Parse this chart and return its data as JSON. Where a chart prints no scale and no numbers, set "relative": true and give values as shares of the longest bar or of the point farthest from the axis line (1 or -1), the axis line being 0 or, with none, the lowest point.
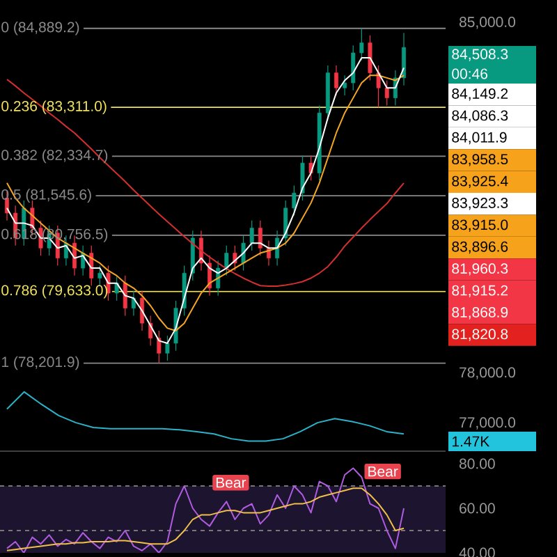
{
  "chart_data": [
    {
      "type": "candlestick",
      "categories": [
        null,
        null,
        null,
        null,
        null,
        null,
        null,
        null,
        null,
        null,
        null,
        null,
        null,
        null,
        null,
        null,
        null,
        null,
        null,
        null,
        null,
        null,
        null,
        null,
        null,
        null,
        null,
        null,
        null,
        null,
        null,
        null,
        null,
        null,
        null,
        null,
        null,
        null,
        null,
        null,
        null,
        null,
        null,
        null,
        null,
        null,
        null,
        null
      ],
      "ohlc": [
        [
          81500,
          81650,
          81050,
          81200
        ],
        [
          81200,
          81350,
          80550,
          80700
        ],
        [
          80700,
          81450,
          80550,
          81300
        ],
        [
          81300,
          81450,
          80750,
          80900
        ],
        [
          80900,
          81050,
          80350,
          80500
        ],
        [
          80500,
          80950,
          80350,
          80800
        ],
        [
          80800,
          80950,
          80150,
          80300
        ],
        [
          80300,
          80750,
          80150,
          80600
        ],
        [
          80600,
          80750,
          79950,
          80100
        ],
        [
          80100,
          80550,
          79950,
          80400
        ],
        [
          80400,
          80550,
          79750,
          79900
        ],
        [
          79900,
          80150,
          79750,
          80000
        ],
        [
          80000,
          80150,
          79450,
          79600
        ],
        [
          79600,
          79950,
          79450,
          79800
        ],
        [
          79800,
          79950,
          79150,
          79300
        ],
        [
          79300,
          79650,
          79150,
          79500
        ],
        [
          79500,
          79650,
          78850,
          79000
        ],
        [
          79000,
          79150,
          78550,
          78700
        ],
        [
          78700,
          78850,
          78201.9,
          78400
        ],
        [
          78400,
          78750,
          78250,
          78600
        ],
        [
          78600,
          79450,
          78450,
          79300
        ],
        [
          79300,
          80150,
          79150,
          80000
        ],
        [
          80000,
          80850,
          79850,
          80700
        ],
        [
          80700,
          80850,
          80050,
          80200
        ],
        [
          80200,
          80350,
          79550,
          79700
        ],
        [
          79700,
          80250,
          79550,
          80100
        ],
        [
          80100,
          80550,
          79950,
          80400
        ],
        [
          80400,
          80550,
          80050,
          80200
        ],
        [
          80200,
          80750,
          80050,
          80600
        ],
        [
          80600,
          81050,
          80450,
          80900
        ],
        [
          80900,
          81050,
          80350,
          80500
        ],
        [
          80500,
          80650,
          80150,
          80300
        ],
        [
          80300,
          80850,
          80150,
          80700
        ],
        [
          80700,
          81450,
          80550,
          81300
        ],
        [
          81300,
          81750,
          81150,
          81600
        ],
        [
          81600,
          82350,
          81450,
          82200
        ],
        [
          82200,
          82350,
          81850,
          82000
        ],
        [
          82000,
          83350,
          81850,
          83200
        ],
        [
          83200,
          84150,
          83050,
          84000
        ],
        [
          84000,
          84150,
          83550,
          83700
        ],
        [
          83700,
          83950,
          83550,
          83800
        ],
        [
          83800,
          84550,
          83650,
          84400
        ],
        [
          84400,
          84889.2,
          84250,
          84600
        ],
        [
          84600,
          84750,
          83850,
          84000
        ],
        [
          84000,
          84150,
          83311,
          83700
        ],
        [
          83700,
          83850,
          83350,
          83500
        ],
        [
          83500,
          84050,
          83350,
          83900
        ],
        [
          83900,
          84800,
          83750,
          84508.3
        ]
      ],
      "series": [
        {
          "type": "line",
          "color": "#d32f2f",
          "values": [
            83870,
            83740,
            83600,
            83470,
            83340,
            83200,
            83070,
            82930,
            82800,
            82640,
            82480,
            82310,
            82150,
            81990,
            81830,
            81660,
            81500,
            81340,
            81180,
            81030,
            80880,
            80730,
            80590,
            80450,
            80320,
            80200,
            80090,
            79990,
            79900,
            79820,
            79750,
            79740,
            79740,
            79760,
            79790,
            79830,
            79900,
            80000,
            80130,
            80320,
            80540,
            80720,
            80900,
            81070,
            81230,
            81390,
            81600,
            81800
          ]
        },
        {
          "type": "line",
          "color": "#f5a623",
          "values": [
            81800,
            81500,
            81300,
            81150,
            81000,
            80850,
            80700,
            80600,
            80500,
            80400,
            80300,
            80200,
            80050,
            79950,
            79800,
            79700,
            79550,
            79350,
            79100,
            78900,
            78850,
            79000,
            79300,
            79600,
            79800,
            79900,
            80000,
            80100,
            80200,
            80300,
            80400,
            80450,
            80500,
            80600,
            80800,
            81100,
            81400,
            81800,
            82300,
            82800,
            83200,
            83500,
            83800,
            83950,
            83950,
            83900,
            83850,
            83950
          ]
        },
        {
          "type": "line",
          "color": "#ffffff",
          "values": [
            81300,
            81000,
            81000,
            80950,
            80700,
            80700,
            80500,
            80550,
            80300,
            80350,
            80100,
            80100,
            79800,
            79800,
            79550,
            79500,
            79250,
            78950,
            78650,
            78600,
            78900,
            79500,
            80100,
            80300,
            80100,
            80000,
            80100,
            80250,
            80400,
            80600,
            80600,
            80500,
            80500,
            80800,
            81200,
            81700,
            82000,
            82500,
            83100,
            83600,
            83850,
            84000,
            84300,
            84300,
            84000,
            83700,
            83700,
            84100
          ]
        }
      ],
      "ylim": [
        77000,
        85400
      ],
      "yticks": [
        {
          "value": 85000,
          "label": "85,000.0"
        },
        {
          "value": 78000,
          "label": "78,000.0"
        },
        {
          "value": 77000,
          "label": "77,000.0"
        }
      ],
      "tick_labels": "y",
      "ref_lines": [
        {
          "axis": "y",
          "value": 84889.2,
          "label": "0 (84,889.2)",
          "color": "#8a8a8a"
        },
        {
          "axis": "y",
          "value": 83311.0,
          "label": "0.236 (83,311.0)",
          "color": "#f2e35c"
        },
        {
          "axis": "y",
          "value": 82334.7,
          "label": "0.382 (82,334.7)",
          "color": "#8a8a8a"
        },
        {
          "axis": "y",
          "value": 81545.6,
          "label": "0.5 (81,545.6)",
          "color": "#8a8a8a"
        },
        {
          "axis": "y",
          "value": 80756.5,
          "label": "0.618 (80,756.5)",
          "color": "#8a8a8a"
        },
        {
          "axis": "y",
          "value": 79633.0,
          "label": "0.786 (79,633.0)",
          "color": "#f2e35c"
        },
        {
          "axis": "y",
          "value": 78201.9,
          "label": "1 (78,201.9)",
          "color": "#8a8a8a"
        }
      ],
      "annotations": [
        "84,508.3",
        "00:46",
        "84,149.2",
        "84,086.3",
        "84,011.9",
        "83,958.5",
        "83,925.4",
        "83,923.3",
        "83,915.0",
        "83,896.6",
        "81,960.3",
        "81,915.2",
        "81,868.9",
        "81,820.8"
      ]
    },
    {
      "type": "line",
      "relative": true,
      "categories": [
        null,
        null,
        null,
        null,
        null,
        null,
        null,
        null,
        null,
        null,
        null,
        null,
        null,
        null,
        null,
        null,
        null,
        null,
        null,
        null,
        null,
        null,
        null,
        null
      ],
      "series": [
        {
          "color": "#2bb3c9",
          "values": [
            0.71,
            1.0,
            0.79,
            0.6,
            0.48,
            0.4,
            0.38,
            0.38,
            0.38,
            0.38,
            0.36,
            0.33,
            0.29,
            0.21,
            0.17,
            0.17,
            0.21,
            0.33,
            0.48,
            0.55,
            0.5,
            0.43,
            0.33,
            0.29
          ]
        }
      ],
      "tick_labels": false,
      "annotations": [
        "1.47K"
      ]
    },
    {
      "type": "line",
      "categories": [
        null,
        null,
        null,
        null,
        null,
        null,
        null,
        null,
        null,
        null,
        null,
        null,
        null,
        null,
        null,
        null,
        null,
        null,
        null,
        null,
        null,
        null,
        null,
        null,
        null,
        null,
        null,
        null,
        null,
        null,
        null,
        null,
        null,
        null,
        null,
        null,
        null,
        null,
        null,
        null,
        null,
        null,
        null,
        null,
        null,
        null,
        null,
        null
      ],
      "series": [
        {
          "color": "#b05ce0",
          "values": [
            42,
            45,
            40,
            47,
            44,
            48,
            43,
            46,
            44,
            49,
            45,
            42,
            47,
            45,
            50,
            43,
            41,
            44,
            40,
            45,
            62,
            70,
            60,
            55,
            52,
            58,
            63,
            55,
            60,
            62,
            53,
            57,
            66,
            60,
            70,
            66,
            58,
            72,
            70,
            63,
            75,
            78,
            74,
            62,
            60,
            50,
            42,
            60
          ]
        },
        {
          "color": "#f0c04a",
          "values": [
            41,
            41.5,
            42,
            42.5,
            43,
            43.5,
            44,
            44,
            44.5,
            44.5,
            45,
            45,
            45,
            45.5,
            45.5,
            45,
            44.5,
            44,
            44,
            44,
            46,
            50,
            55,
            57,
            57,
            58,
            59,
            59,
            58,
            58,
            58,
            59,
            60,
            61,
            62,
            62,
            63,
            65,
            66,
            67,
            68,
            69,
            69,
            66,
            62,
            57,
            50,
            51
          ]
        }
      ],
      "ylim": [
        40,
        80
      ],
      "yticks": [
        {
          "value": 80,
          "label": "80.00"
        },
        {
          "value": 60,
          "label": "60.00"
        },
        {
          "value": 40,
          "label": "40.00"
        }
      ],
      "tick_labels": "y",
      "ref_lines": [
        {
          "axis": "y",
          "value": 70,
          "color": "#777777",
          "line_style": "dashed"
        },
        {
          "axis": "y",
          "value": 50,
          "color": "#777777",
          "line_style": "dashed"
        }
      ],
      "bands": [
        {
          "axis": "y",
          "from": 40,
          "to": 70,
          "color": "#1d1530"
        }
      ],
      "annotations": [
        "Bear",
        "Bear"
      ]
    }
  ]
}
